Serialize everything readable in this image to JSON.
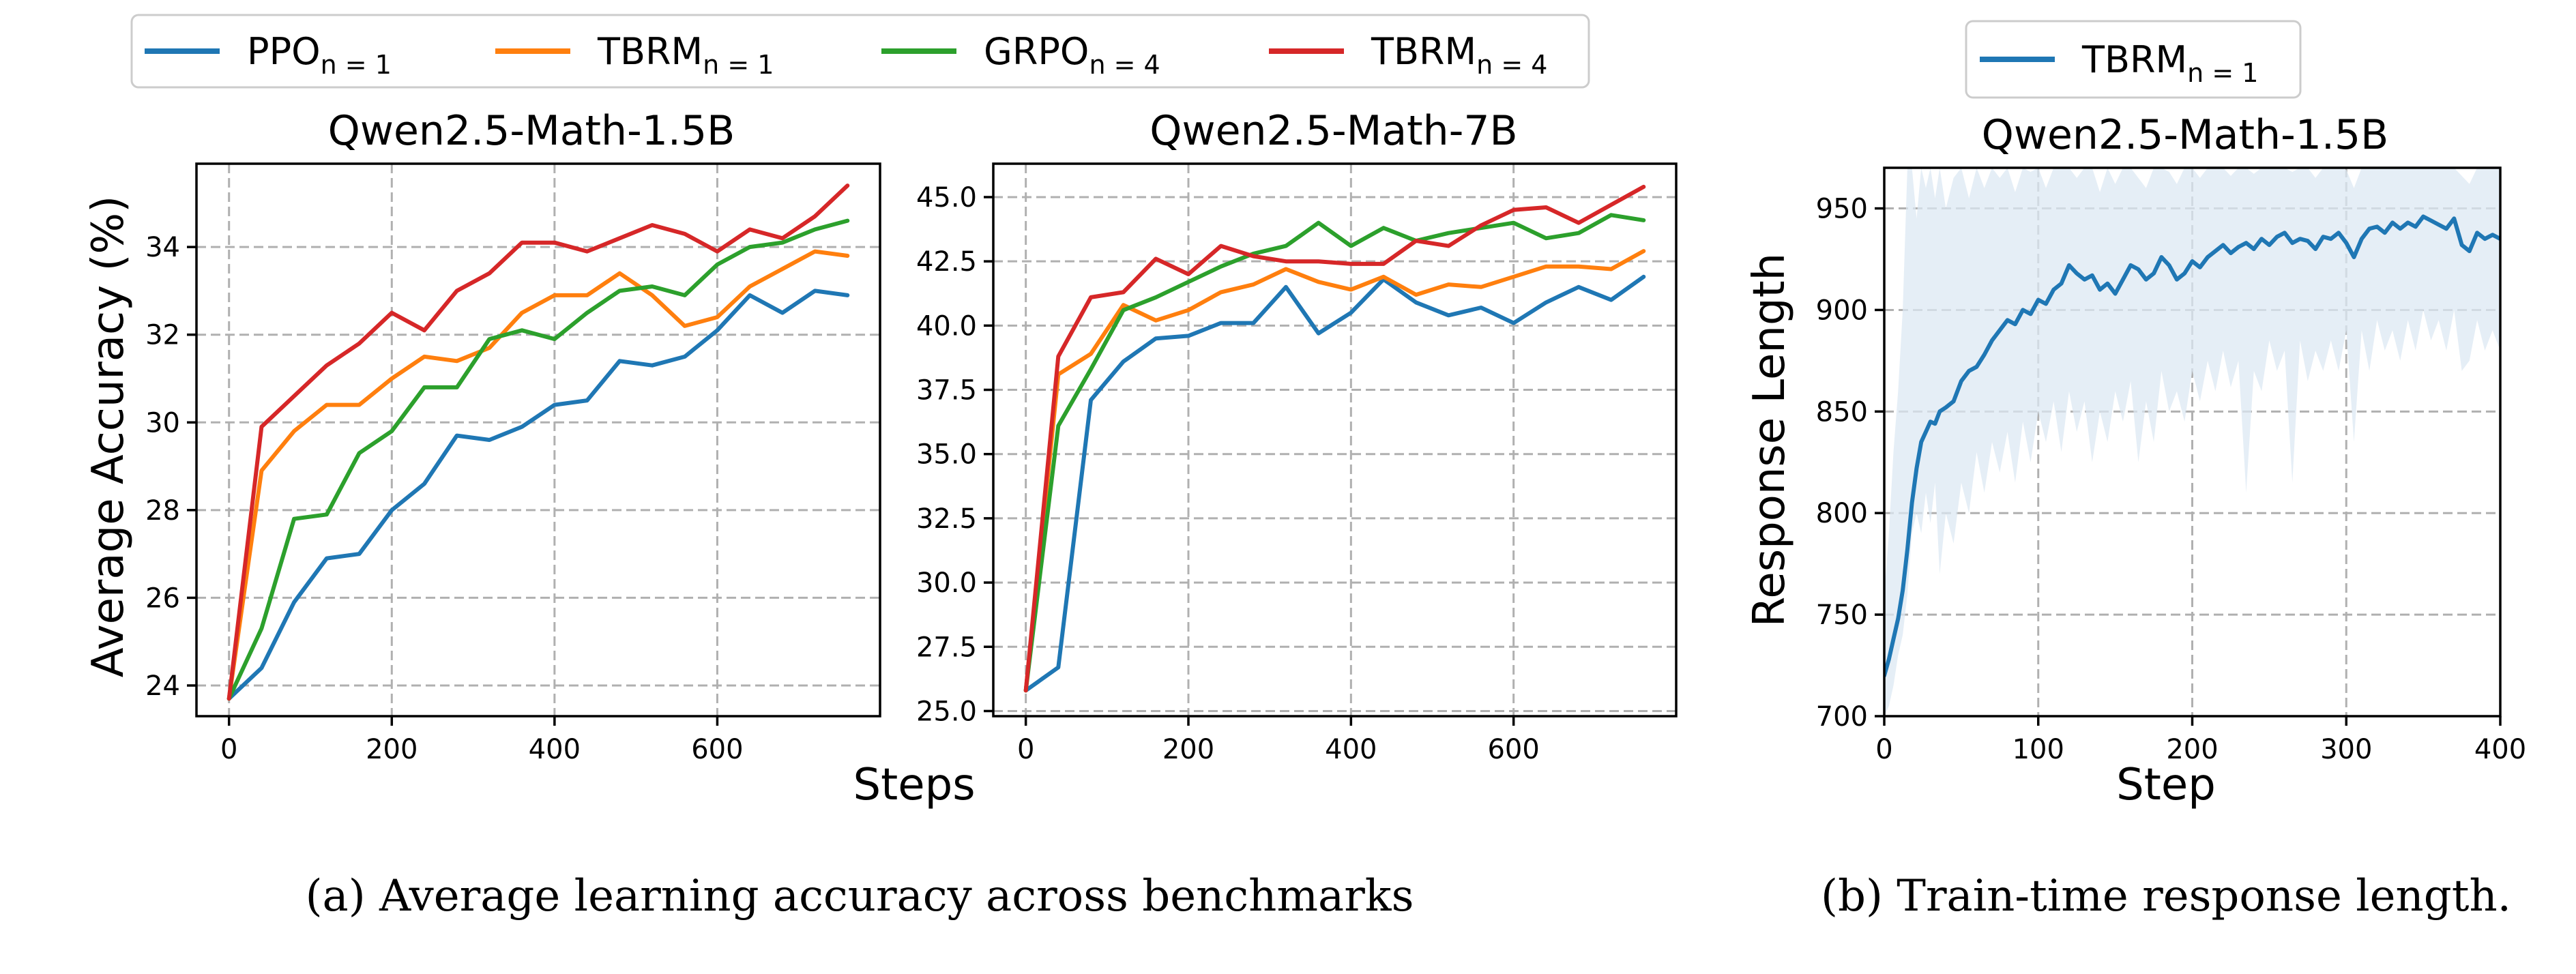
{
  "colors": {
    "ppo": "#1f77b4",
    "tbrm1": "#ff7f0e",
    "grpo": "#2ca02c",
    "tbrm4": "#d62728",
    "band": "#dce8f3"
  },
  "legend_a": [
    {
      "base": "PPO",
      "sub": "n = 1",
      "color_key": "ppo"
    },
    {
      "base": "TBRM",
      "sub": "n = 1",
      "color_key": "tbrm1"
    },
    {
      "base": "GRPO",
      "sub": "n = 4",
      "color_key": "grpo"
    },
    {
      "base": "TBRM",
      "sub": "n = 4",
      "color_key": "tbrm4"
    }
  ],
  "legend_b": [
    {
      "base": "TBRM",
      "sub": "n = 1",
      "color_key": "ppo"
    }
  ],
  "captions": {
    "a": "(a) Average learning accuracy across benchmarks",
    "b": "(b) Train-time response length."
  },
  "shared_xlabel": "Steps",
  "chart_data": [
    {
      "type": "line",
      "title": "Qwen2.5-Math-1.5B",
      "xlabel": "",
      "ylabel": "Average Accuracy (%)",
      "xlim": [
        -40,
        800
      ],
      "ylim": [
        23.3,
        35.9
      ],
      "xticks": [
        0,
        200,
        400,
        600
      ],
      "yticks": [
        24,
        26,
        28,
        30,
        32,
        34
      ],
      "ytick_labels": [
        "24",
        "26",
        "28",
        "30",
        "32",
        "34"
      ],
      "grid": true,
      "x": [
        0,
        40,
        80,
        120,
        160,
        200,
        240,
        280,
        320,
        360,
        400,
        440,
        480,
        520,
        560,
        600,
        640,
        680,
        720,
        760
      ],
      "series": [
        {
          "name": "PPO_{n=1}",
          "color_key": "ppo",
          "values": [
            23.7,
            24.4,
            25.9,
            26.9,
            27.0,
            28.0,
            28.6,
            29.7,
            29.6,
            29.9,
            30.4,
            30.5,
            31.4,
            31.3,
            31.5,
            32.1,
            32.9,
            32.5,
            33.0,
            32.9
          ]
        },
        {
          "name": "TBRM_{n=1}",
          "color_key": "tbrm1",
          "values": [
            23.7,
            28.9,
            29.8,
            30.4,
            30.4,
            31.0,
            31.5,
            31.4,
            31.7,
            32.5,
            32.9,
            32.9,
            33.4,
            32.9,
            32.2,
            32.4,
            33.1,
            33.5,
            33.9,
            33.8
          ]
        },
        {
          "name": "GRPO_{n=4}",
          "color_key": "grpo",
          "values": [
            23.7,
            25.3,
            27.8,
            27.9,
            29.3,
            29.8,
            30.8,
            30.8,
            31.9,
            32.1,
            31.9,
            32.5,
            33.0,
            33.1,
            32.9,
            33.6,
            34.0,
            34.1,
            34.4,
            34.6
          ]
        },
        {
          "name": "TBRM_{n=4}",
          "color_key": "tbrm4",
          "values": [
            23.7,
            29.9,
            30.6,
            31.3,
            31.8,
            32.5,
            32.1,
            33.0,
            33.4,
            34.1,
            34.1,
            33.9,
            34.2,
            34.5,
            34.3,
            33.9,
            34.4,
            34.2,
            34.7,
            35.4
          ]
        }
      ]
    },
    {
      "type": "line",
      "title": "Qwen2.5-Math-7B",
      "xlabel": "",
      "ylabel": "",
      "xlim": [
        -40,
        800
      ],
      "ylim": [
        24.8,
        46.3
      ],
      "xticks": [
        0,
        200,
        400,
        600
      ],
      "yticks": [
        25,
        27.5,
        30,
        32.5,
        35,
        37.5,
        40,
        42.5,
        45
      ],
      "ytick_labels": [
        "25.0",
        "27.5",
        "30.0",
        "32.5",
        "35.0",
        "37.5",
        "40.0",
        "42.5",
        "45.0"
      ],
      "grid": true,
      "x": [
        0,
        40,
        80,
        120,
        160,
        200,
        240,
        280,
        320,
        360,
        400,
        440,
        480,
        520,
        560,
        600,
        640,
        680,
        720,
        760
      ],
      "series": [
        {
          "name": "PPO_{n=1}",
          "color_key": "ppo",
          "values": [
            25.8,
            26.7,
            37.1,
            38.6,
            39.5,
            39.6,
            40.1,
            40.1,
            41.5,
            39.7,
            40.5,
            41.8,
            40.9,
            40.4,
            40.7,
            40.1,
            40.9,
            41.5,
            41.0,
            41.9
          ]
        },
        {
          "name": "TBRM_{n=1}",
          "color_key": "tbrm1",
          "values": [
            25.8,
            38.1,
            38.9,
            40.8,
            40.2,
            40.6,
            41.3,
            41.6,
            42.2,
            41.7,
            41.4,
            41.9,
            41.2,
            41.6,
            41.5,
            41.9,
            42.3,
            42.3,
            42.2,
            42.9
          ]
        },
        {
          "name": "GRPO_{n=4}",
          "color_key": "grpo",
          "values": [
            25.8,
            36.1,
            38.3,
            40.6,
            41.1,
            41.7,
            42.3,
            42.8,
            43.1,
            44.0,
            43.1,
            43.8,
            43.3,
            43.6,
            43.8,
            44.0,
            43.4,
            43.6,
            44.3,
            44.1
          ]
        },
        {
          "name": "TBRM_{n=4}",
          "color_key": "tbrm4",
          "values": [
            25.8,
            38.8,
            41.1,
            41.3,
            42.6,
            42.0,
            43.1,
            42.7,
            42.5,
            42.5,
            42.4,
            42.4,
            43.3,
            43.1,
            43.9,
            44.5,
            44.6,
            44.0,
            44.7,
            45.4
          ]
        }
      ]
    },
    {
      "type": "line",
      "title": "Qwen2.5-Math-1.5B",
      "xlabel": "Step",
      "ylabel": "Response Length",
      "xlim": [
        0,
        400
      ],
      "ylim": [
        700,
        970
      ],
      "xticks": [
        0,
        100,
        200,
        300,
        400
      ],
      "yticks": [
        700,
        750,
        800,
        850,
        900,
        950
      ],
      "ytick_labels": [
        "700",
        "750",
        "800",
        "850",
        "900",
        "950"
      ],
      "grid": true,
      "series": [
        {
          "name": "TBRM_{n=1}",
          "color_key": "ppo",
          "x": [
            0,
            3,
            6,
            9,
            12,
            15,
            18,
            21,
            24,
            27,
            30,
            33,
            36,
            40,
            45,
            50,
            55,
            60,
            65,
            70,
            75,
            80,
            85,
            90,
            95,
            100,
            105,
            110,
            115,
            120,
            125,
            130,
            135,
            140,
            145,
            150,
            155,
            160,
            165,
            170,
            175,
            180,
            185,
            190,
            195,
            200,
            205,
            210,
            215,
            220,
            225,
            230,
            235,
            240,
            245,
            250,
            255,
            260,
            265,
            270,
            275,
            280,
            285,
            290,
            295,
            300,
            305,
            310,
            315,
            320,
            325,
            330,
            335,
            340,
            345,
            350,
            355,
            360,
            365,
            370,
            375,
            380,
            385,
            390,
            395,
            400
          ],
          "values": [
            720,
            728,
            738,
            748,
            762,
            782,
            805,
            822,
            835,
            840,
            845,
            844,
            850,
            852,
            855,
            865,
            870,
            872,
            878,
            885,
            890,
            895,
            893,
            900,
            898,
            905,
            903,
            910,
            913,
            922,
            918,
            915,
            917,
            910,
            913,
            908,
            915,
            922,
            920,
            915,
            918,
            926,
            922,
            915,
            918,
            924,
            921,
            926,
            929,
            932,
            928,
            931,
            933,
            930,
            935,
            932,
            936,
            938,
            933,
            935,
            934,
            930,
            936,
            935,
            938,
            933,
            926,
            935,
            940,
            941,
            938,
            943,
            940,
            943,
            941,
            946,
            944,
            942,
            940,
            945,
            932,
            929,
            938,
            935,
            937,
            935
          ],
          "band_upper": [
            760,
            790,
            830,
            860,
            900,
            970,
            970,
            945,
            970,
            960,
            970,
            955,
            970,
            950,
            965,
            970,
            955,
            970,
            960,
            970,
            965,
            970,
            958,
            970,
            968,
            970,
            960,
            970,
            970,
            970,
            965,
            970,
            970,
            958,
            970,
            962,
            970,
            970,
            965,
            960,
            970,
            970,
            968,
            962,
            970,
            970,
            965,
            970,
            970,
            970,
            966,
            970,
            970,
            967,
            970,
            970,
            970,
            970,
            968,
            970,
            970,
            965,
            970,
            970,
            970,
            969,
            960,
            970,
            970,
            970,
            970,
            970,
            970,
            970,
            970,
            970,
            970,
            970,
            970,
            970,
            966,
            962,
            970,
            970,
            970,
            970
          ],
          "band_lower": [
            700,
            705,
            715,
            730,
            740,
            760,
            790,
            800,
            790,
            810,
            795,
            815,
            770,
            800,
            785,
            815,
            800,
            830,
            810,
            835,
            820,
            840,
            815,
            845,
            825,
            850,
            835,
            855,
            830,
            860,
            840,
            855,
            825,
            850,
            835,
            860,
            845,
            865,
            825,
            855,
            835,
            870,
            850,
            860,
            845,
            870,
            855,
            875,
            860,
            880,
            862,
            875,
            810,
            870,
            860,
            885,
            870,
            880,
            815,
            885,
            865,
            880,
            870,
            885,
            870,
            890,
            835,
            890,
            870,
            895,
            880,
            890,
            875,
            895,
            880,
            900,
            885,
            895,
            880,
            900,
            870,
            875,
            895,
            880,
            890,
            880
          ]
        }
      ]
    }
  ]
}
